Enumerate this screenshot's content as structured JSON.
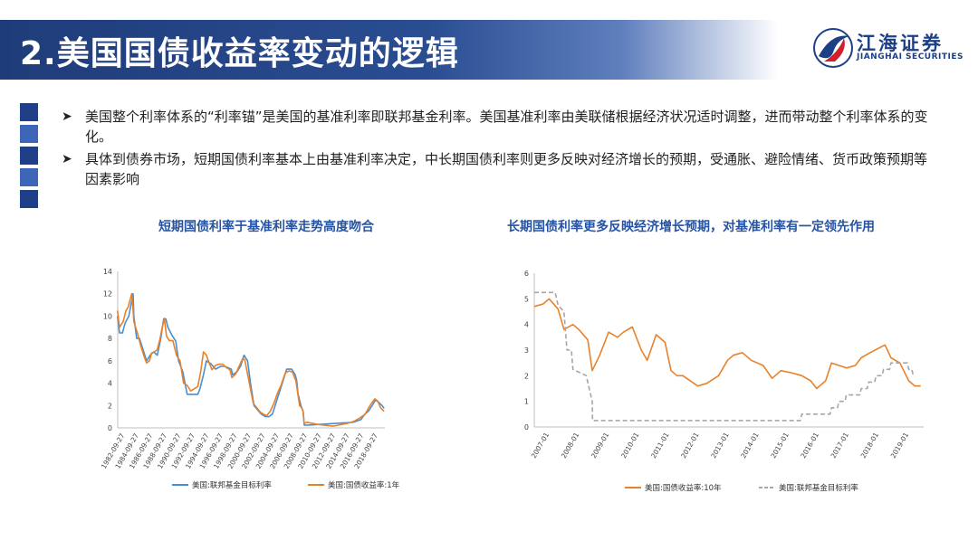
{
  "slide": {
    "title": "2.美国国债收益率变动的逻辑"
  },
  "logo": {
    "cn": "江海证券",
    "en": "JIANGHAI SECURITIES"
  },
  "colors": {
    "title_bar": "#1f3c7a",
    "squares": [
      "#1f3f88",
      "#3d66b8",
      "#1f3f88",
      "#3d66b8",
      "#1f3f88"
    ],
    "fed_rate_left": "#4a8fd1",
    "treasury_1y": "#e8822a",
    "treasury_10y": "#e8822a",
    "fed_rate_right": "#a6a6a6",
    "chart_title": "#2654a4"
  },
  "bullets": [
    {
      "icon": "arrow-right-icon",
      "text": "美国整个利率体系的“利率锚”是美国的基准利率即联邦基金利率。美国基准利率由美联储根据经济状况适时调整，进而带动整个利率体系的变化。"
    },
    {
      "icon": "arrow-right-icon",
      "text": "具体到债券市场，短期国债利率基本上由基准利率决定，中长期国债利率则更多反映对经济增长的预期，受通胀、避险情绪、货币政策预期等因素影响"
    }
  ],
  "chart_data": [
    {
      "type": "line",
      "title": "短期国债利率于基准利率走势高度吻合",
      "ylim": [
        0,
        14
      ],
      "yticks": [
        0,
        2,
        4,
        6,
        8,
        10,
        12,
        14
      ],
      "xlim": [
        1982.74,
        2020.3
      ],
      "xtick_labels": [
        "1982-09-27",
        "1984-09-27",
        "1986-09-27",
        "1988-09-27",
        "1990-09-27",
        "1992-09-27",
        "1994-09-27",
        "1996-09-27",
        "1998-09-27",
        "2000-09-27",
        "2002-09-27",
        "2004-09-27",
        "2006-09-27",
        "2008-09-27",
        "2010-09-27",
        "2012-09-27",
        "2014-09-27",
        "2016-09-27",
        "2018-09-27"
      ],
      "grid": false,
      "legend": "bottom",
      "series": [
        {
          "name": "美国:联邦基金目标利率",
          "color": "#4a8fd1",
          "x": [
            1982.7,
            1983.0,
            1983.4,
            1983.8,
            1984.3,
            1984.6,
            1984.9,
            1985.0,
            1985.4,
            1985.8,
            1986.3,
            1986.8,
            1987.3,
            1987.8,
            1988.3,
            1988.8,
            1989.2,
            1989.5,
            1989.8,
            1990.4,
            1990.9,
            1991.3,
            1991.9,
            1992.5,
            1992.9,
            1993.5,
            1994.0,
            1994.3,
            1994.8,
            1995.2,
            1995.8,
            1996.5,
            1997.2,
            1997.8,
            1998.7,
            1998.9,
            1999.5,
            2000.0,
            2000.5,
            2001.0,
            2001.4,
            2001.9,
            2002.9,
            2003.5,
            2004.0,
            2004.5,
            2005.0,
            2005.5,
            2006.0,
            2006.5,
            2007.2,
            2007.7,
            2007.9,
            2008.1,
            2008.5,
            2008.8,
            2008.97,
            2009.5,
            2015.9,
            2016.95,
            2017.5,
            2018.0,
            2018.5,
            2019.0,
            2019.5,
            2019.9,
            2020.2
          ],
          "y": [
            10.0,
            8.5,
            8.5,
            9.4,
            10.0,
            11.0,
            12.0,
            10.0,
            8.0,
            8.0,
            7.0,
            6.0,
            6.5,
            6.8,
            6.5,
            8.0,
            9.75,
            9.75,
            9.0,
            8.25,
            7.75,
            6.0,
            5.0,
            3.0,
            3.0,
            3.0,
            3.0,
            3.5,
            4.75,
            6.0,
            5.75,
            5.25,
            5.5,
            5.5,
            5.25,
            4.75,
            5.0,
            5.5,
            6.5,
            6.0,
            4.0,
            2.0,
            1.25,
            1.0,
            1.0,
            1.25,
            2.25,
            3.25,
            4.25,
            5.25,
            5.25,
            4.75,
            4.25,
            3.0,
            2.0,
            1.5,
            0.25,
            0.25,
            0.5,
            0.75,
            1.25,
            1.5,
            2.0,
            2.5,
            2.25,
            2.0,
            1.75
          ]
        },
        {
          "name": "美国:国债收益率:1年",
          "color": "#e8822a",
          "x": [
            1982.7,
            1983.0,
            1983.5,
            1983.9,
            1984.2,
            1984.5,
            1984.7,
            1984.85,
            1985.0,
            1985.5,
            1986.0,
            1986.4,
            1986.8,
            1987.2,
            1987.5,
            1987.9,
            1988.3,
            1988.7,
            1989.0,
            1989.3,
            1989.6,
            1990.0,
            1990.5,
            1991.0,
            1991.5,
            1992.0,
            1992.5,
            1993.0,
            1993.5,
            1994.0,
            1994.4,
            1994.8,
            1995.2,
            1995.6,
            1996.0,
            1996.5,
            1997.0,
            1997.5,
            1998.0,
            1998.5,
            1998.8,
            1999.3,
            1999.8,
            2000.3,
            2000.6,
            2001.0,
            2001.4,
            2001.8,
            2002.3,
            2002.8,
            2003.3,
            2003.7,
            2004.2,
            2004.7,
            2005.2,
            2005.7,
            2006.3,
            2006.8,
            2007.3,
            2007.8,
            2008.0,
            2008.3,
            2008.6,
            2008.8,
            2008.95,
            2009.3,
            2011.0,
            2013.0,
            2015.0,
            2016.0,
            2016.8,
            2017.5,
            2018.3,
            2018.9,
            2019.3,
            2019.7,
            2020.0,
            2020.2
          ],
          "y": [
            10.5,
            9.0,
            9.5,
            10.5,
            10.8,
            11.5,
            12.0,
            11.0,
            9.5,
            8.5,
            7.3,
            6.5,
            5.8,
            6.0,
            6.7,
            6.8,
            7.0,
            8.0,
            9.0,
            9.8,
            8.2,
            7.8,
            7.8,
            6.5,
            6.0,
            4.0,
            3.8,
            3.3,
            3.5,
            3.7,
            5.0,
            6.8,
            6.5,
            5.8,
            5.2,
            5.6,
            5.7,
            5.7,
            5.4,
            5.2,
            4.5,
            4.8,
            5.5,
            6.2,
            6.1,
            4.8,
            3.5,
            2.2,
            1.8,
            1.4,
            1.2,
            1.1,
            1.5,
            2.2,
            3.1,
            3.8,
            4.9,
            5.1,
            5.0,
            4.2,
            3.3,
            2.0,
            1.8,
            1.5,
            0.4,
            0.5,
            0.3,
            0.15,
            0.4,
            0.6,
            0.9,
            1.2,
            2.1,
            2.6,
            2.4,
            1.8,
            1.6,
            1.5
          ]
        }
      ]
    },
    {
      "type": "line",
      "title": "长期国债利率更多反映经济增长预期，对基准利率有一定领先作用",
      "ylim": [
        0,
        6
      ],
      "yticks": [
        0,
        1,
        2,
        3,
        4,
        5,
        6
      ],
      "xlim": [
        2007.0,
        2020.1
      ],
      "xtick_labels": [
        "2007-01",
        "2008-01",
        "2009-01",
        "2010-01",
        "2011-01",
        "2012-01",
        "2013-01",
        "2014-01",
        "2015-01",
        "2016-01",
        "2017-01",
        "2018-01",
        "2019-01"
      ],
      "grid": false,
      "legend": "bottom",
      "series": [
        {
          "name": "美国:国债收益率:10年",
          "color": "#e8822a",
          "x": [
            2007.0,
            2007.3,
            2007.5,
            2007.8,
            2008.0,
            2008.3,
            2008.5,
            2008.8,
            2008.95,
            2009.2,
            2009.5,
            2009.8,
            2010.0,
            2010.3,
            2010.6,
            2010.8,
            2011.1,
            2011.4,
            2011.6,
            2011.8,
            2012.0,
            2012.5,
            2012.8,
            2013.2,
            2013.5,
            2013.7,
            2014.0,
            2014.3,
            2014.7,
            2015.0,
            2015.3,
            2015.7,
            2016.0,
            2016.3,
            2016.5,
            2016.8,
            2017.0,
            2017.5,
            2017.8,
            2018.0,
            2018.3,
            2018.8,
            2019.0,
            2019.3,
            2019.6,
            2019.8,
            2020.0
          ],
          "y": [
            4.7,
            4.8,
            5.0,
            4.6,
            3.8,
            4.0,
            3.8,
            3.4,
            2.2,
            2.8,
            3.7,
            3.5,
            3.7,
            3.9,
            3.0,
            2.6,
            3.6,
            3.3,
            2.2,
            2.0,
            2.0,
            1.6,
            1.7,
            2.0,
            2.6,
            2.8,
            2.9,
            2.6,
            2.4,
            1.9,
            2.2,
            2.1,
            2.0,
            1.8,
            1.5,
            1.8,
            2.5,
            2.3,
            2.4,
            2.7,
            2.9,
            3.2,
            2.7,
            2.5,
            1.8,
            1.6,
            1.6
          ]
        },
        {
          "name": "美国:联邦基金目标利率",
          "color": "#a6a6a6",
          "x": [
            2007.0,
            2007.7,
            2007.8,
            2008.0,
            2008.1,
            2008.25,
            2008.3,
            2008.75,
            2008.85,
            2008.95,
            2008.96,
            2015.95,
            2016.0,
            2016.95,
            2017.0,
            2017.2,
            2017.25,
            2017.45,
            2017.5,
            2017.95,
            2018.0,
            2018.2,
            2018.25,
            2018.45,
            2018.5,
            2018.7,
            2018.75,
            2018.95,
            2019.0,
            2019.55,
            2019.6,
            2019.7,
            2019.75,
            2019.8
          ],
          "y": [
            5.25,
            5.25,
            4.75,
            4.5,
            3.0,
            3.0,
            2.25,
            2.0,
            1.5,
            1.0,
            0.25,
            0.25,
            0.5,
            0.5,
            0.75,
            0.75,
            1.0,
            1.0,
            1.25,
            1.25,
            1.5,
            1.5,
            1.75,
            1.75,
            2.0,
            2.0,
            2.25,
            2.25,
            2.5,
            2.5,
            2.25,
            2.25,
            2.0,
            2.0
          ]
        }
      ]
    }
  ]
}
